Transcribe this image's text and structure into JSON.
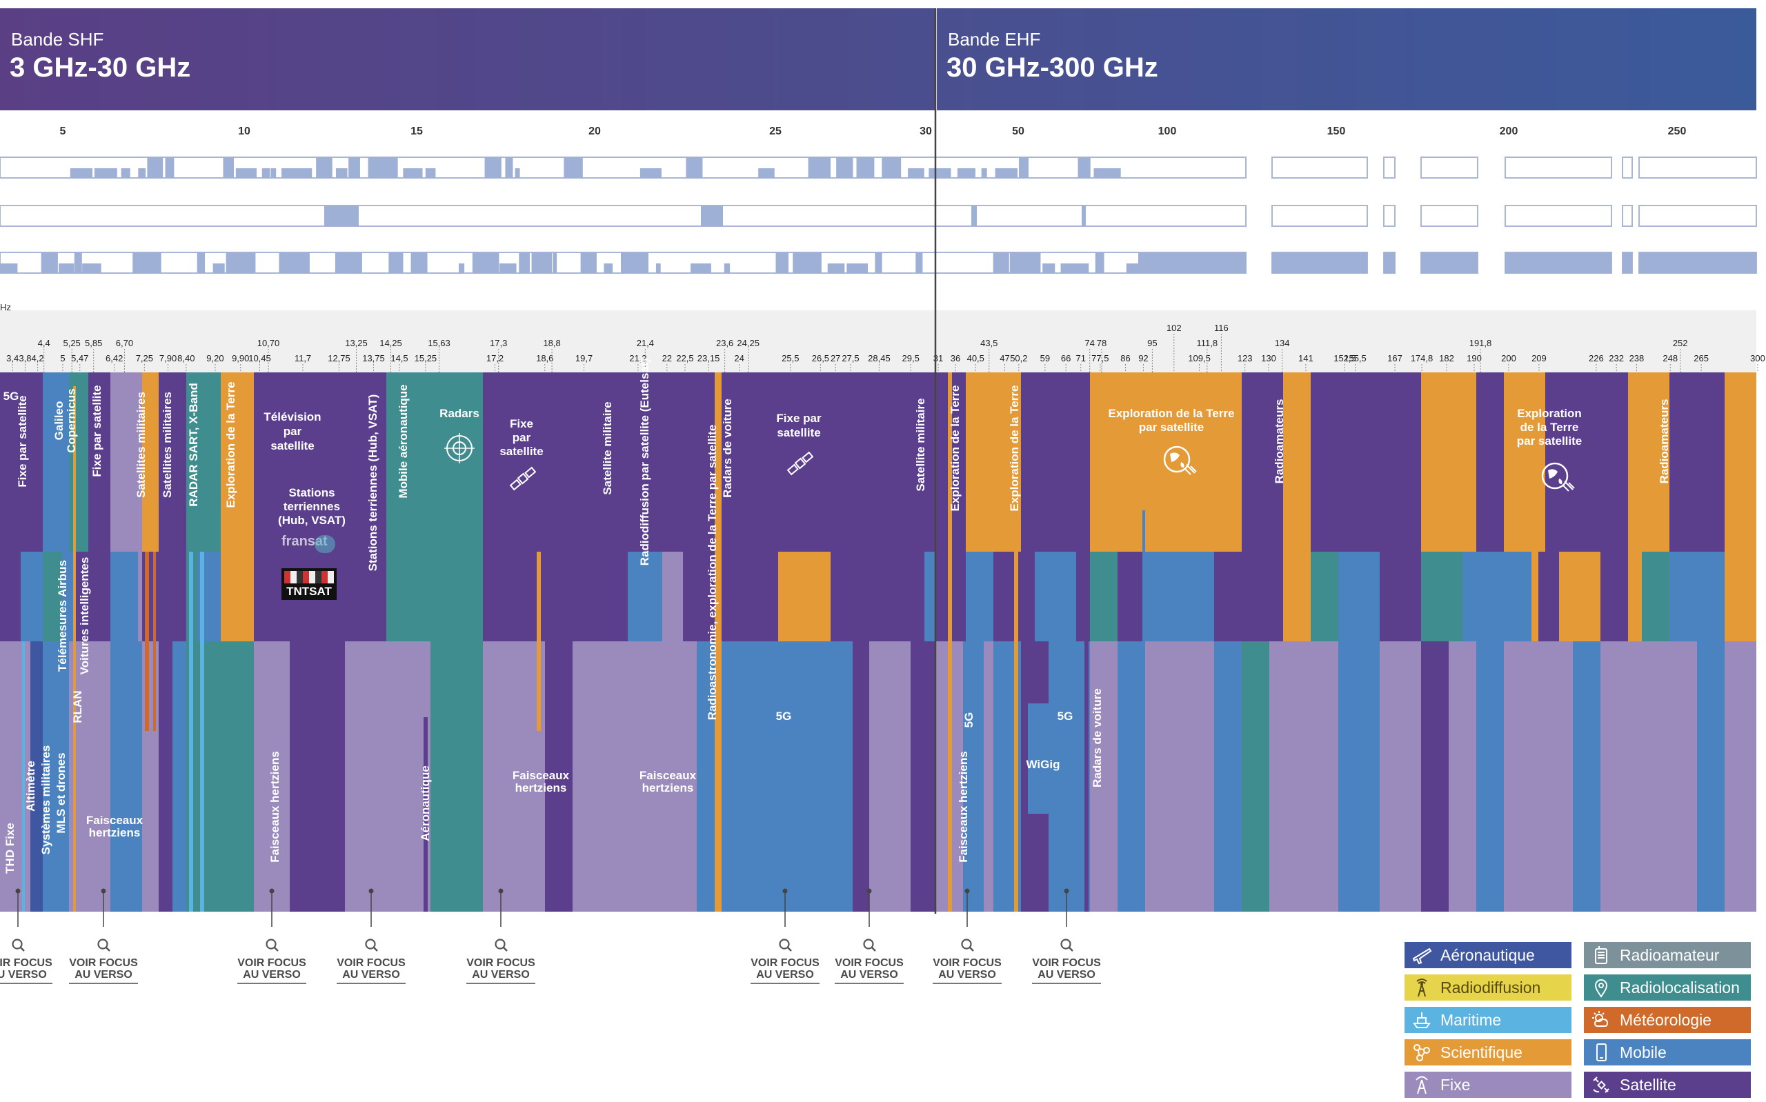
{
  "header": {
    "shf": {
      "name": "Bande SHF",
      "range": "3 GHz-30 GHz"
    },
    "ehf": {
      "name": "Bande EHF",
      "range": "30 GHz-300 GHz"
    }
  },
  "scale_ticks": {
    "shf": [
      "5",
      "10",
      "15",
      "20",
      "25",
      "30"
    ],
    "ehf": [
      "50",
      "100",
      "150",
      "200",
      "250"
    ]
  },
  "unit_fragment": "Hz",
  "edge_labels": {
    "shf_lower": [
      "3,4",
      "3,8",
      "4,2",
      "5",
      "5,47",
      "6,42",
      "7,25",
      "7,90",
      "8,40",
      "9,20",
      "9,90",
      "10,45",
      "11,7",
      "12,75",
      "13,75",
      "14,5",
      "15,25",
      "17,2",
      "18,6",
      "19,7",
      "21,2",
      "22",
      "22,5",
      "23,15",
      "24",
      "25,5",
      "26,5",
      "27",
      "27,5",
      "28,45",
      "29,5",
      "31"
    ],
    "shf_upper": [
      "4,4",
      "5,25",
      "5,85",
      "6,70",
      "10,70",
      "13,25",
      "14,25",
      "15,63",
      "17,3",
      "18,8",
      "21,4",
      "23,6",
      "24,25"
    ],
    "ehf_lower": [
      "36",
      "40,5",
      "47",
      "50,2",
      "59",
      "66",
      "71",
      "77,5",
      "86",
      "92",
      "109,5",
      "123",
      "130",
      "141",
      "152,5",
      "155,5",
      "167",
      "174,8",
      "182",
      "190",
      "200",
      "209",
      "226",
      "232",
      "238",
      "248",
      "265",
      "300"
    ],
    "ehf_upper": [
      "43,5",
      "74",
      "78",
      "95",
      "111,8",
      "134",
      "191,8",
      "252"
    ],
    "ehf_top": [
      "102",
      "116"
    ]
  },
  "band_labels": [
    "5G",
    "Fixe par satellite",
    "Galileo Copernicus",
    "Fixe par satellite",
    "Satellites militaires",
    "Satellites militaires",
    "RADAR SART, X-Band",
    "Exploration de la Terre",
    "Télévision par satellite",
    "Stations terriennes (Hub, VSAT)",
    "Stations terriennes (Hub, VSAT)",
    "Mobile aéronautique",
    "Radars",
    "Fixe par satellite",
    "Satellite militaire",
    "Radiodiffusion par satellite (Eutelsat)",
    "Radioastronomie, exploration de la Terre par satellite",
    "Radars de voiture",
    "Fixe par satellite",
    "Satellite militaire",
    "Exploration de la Terre",
    "Exploration de la Terre",
    "Exploration de la Terre par satellite",
    "Radioamateurs",
    "Exploration de la Terre par satellite",
    "Radioamateurs",
    "Télémesures Airbus",
    "Voitures intelligentes",
    "RLAN",
    "THD Fixe",
    "Altimètre",
    "Systèmes militaires",
    "MLS et drones",
    "Faisceaux hertziens",
    "Faisceaux hertziens",
    "Aéronautique",
    "Faisceaux hertziens",
    "Faisceaux hertziens",
    "5G",
    "5G",
    "5G",
    "WiGig",
    "Radars de voiture",
    "Faisceaux hertziens"
  ],
  "logos": {
    "fransat": "fransat",
    "tntsat": "TNTSAT"
  },
  "focus_label": {
    "line1": "VOIR FOCUS",
    "line2": "AU VERSO"
  },
  "focus_count": 9,
  "legend": [
    {
      "label": "Aéronautique",
      "color": "#3f56a0",
      "icon": "plane-icon"
    },
    {
      "label": "Radiodiffusion",
      "color": "#e6d44a",
      "icon": "antenna-icon",
      "text_color": "#5a4a10"
    },
    {
      "label": "Maritime",
      "color": "#5ab3e0",
      "icon": "ship-icon"
    },
    {
      "label": "Scientifique",
      "color": "#e39a37",
      "icon": "molecule-icon"
    },
    {
      "label": "Fixe",
      "color": "#9b8bbd",
      "icon": "relay-tower-icon"
    },
    {
      "label": "Radioamateur",
      "color": "#7c9199",
      "icon": "radio-set-icon"
    },
    {
      "label": "Radiolocalisation",
      "color": "#3f8d8f",
      "icon": "location-pin-icon"
    },
    {
      "label": "Météorologie",
      "color": "#cf6a2b",
      "icon": "weather-icon"
    },
    {
      "label": "Mobile",
      "color": "#4a83c0",
      "icon": "mobile-phone-icon"
    },
    {
      "label": "Satellite",
      "color": "#5b3f8c",
      "icon": "satellite-icon"
    }
  ],
  "colors": {
    "satellite": "#5b3f8c",
    "fixe": "#9b8bbd",
    "mobile": "#4a83c0",
    "scientifique": "#e39a37",
    "radiolocalisation": "#3f8d8f",
    "meteorologie": "#cf6a2b",
    "aeronautique": "#3f56a0",
    "radioamateur": "#7c9199",
    "maritime": "#5ab3e0",
    "strip": "#9fb0d6"
  }
}
